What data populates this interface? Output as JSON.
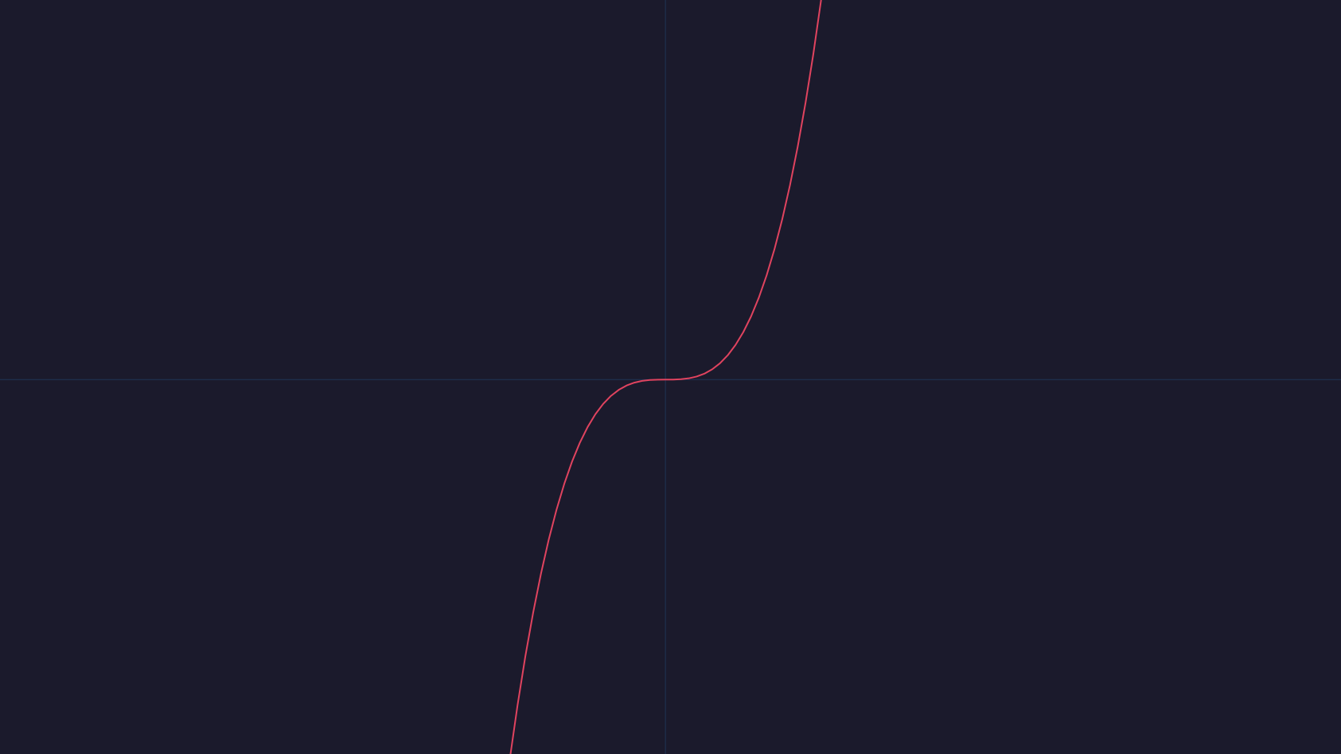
{
  "chart_data": {
    "type": "line",
    "x": [
      -2,
      -1.9,
      -1.8,
      -1.7,
      -1.6,
      -1.5,
      -1.4,
      -1.3,
      -1.2,
      -1.1,
      -1,
      -0.9,
      -0.8,
      -0.7,
      -0.6,
      -0.5,
      -0.4,
      -0.3,
      -0.2,
      -0.1,
      0,
      0.1,
      0.2,
      0.3,
      0.4,
      0.5,
      0.6,
      0.7,
      0.8,
      0.9,
      1,
      1.1,
      1.2,
      1.3,
      1.4,
      1.5,
      1.6,
      1.7,
      1.8,
      1.9,
      2
    ],
    "values": [
      -8,
      -6.859,
      -5.832,
      -4.913,
      -4.096,
      -3.375,
      -2.744,
      -2.197,
      -1.728,
      -1.331,
      -1,
      -0.729,
      -0.512,
      -0.343,
      -0.216,
      -0.125,
      -0.064,
      -0.027,
      -0.008,
      -0.001,
      0,
      0.001,
      0.008,
      0.027,
      0.064,
      0.125,
      0.216,
      0.343,
      0.512,
      0.729,
      1,
      1.331,
      1.728,
      2.197,
      2.744,
      3.375,
      4.096,
      4.913,
      5.832,
      6.859,
      8
    ],
    "color": "#e0435f",
    "xlim": [
      -8.55,
      8.68
    ],
    "ylim": [
      -7.89,
      8
    ]
  }
}
